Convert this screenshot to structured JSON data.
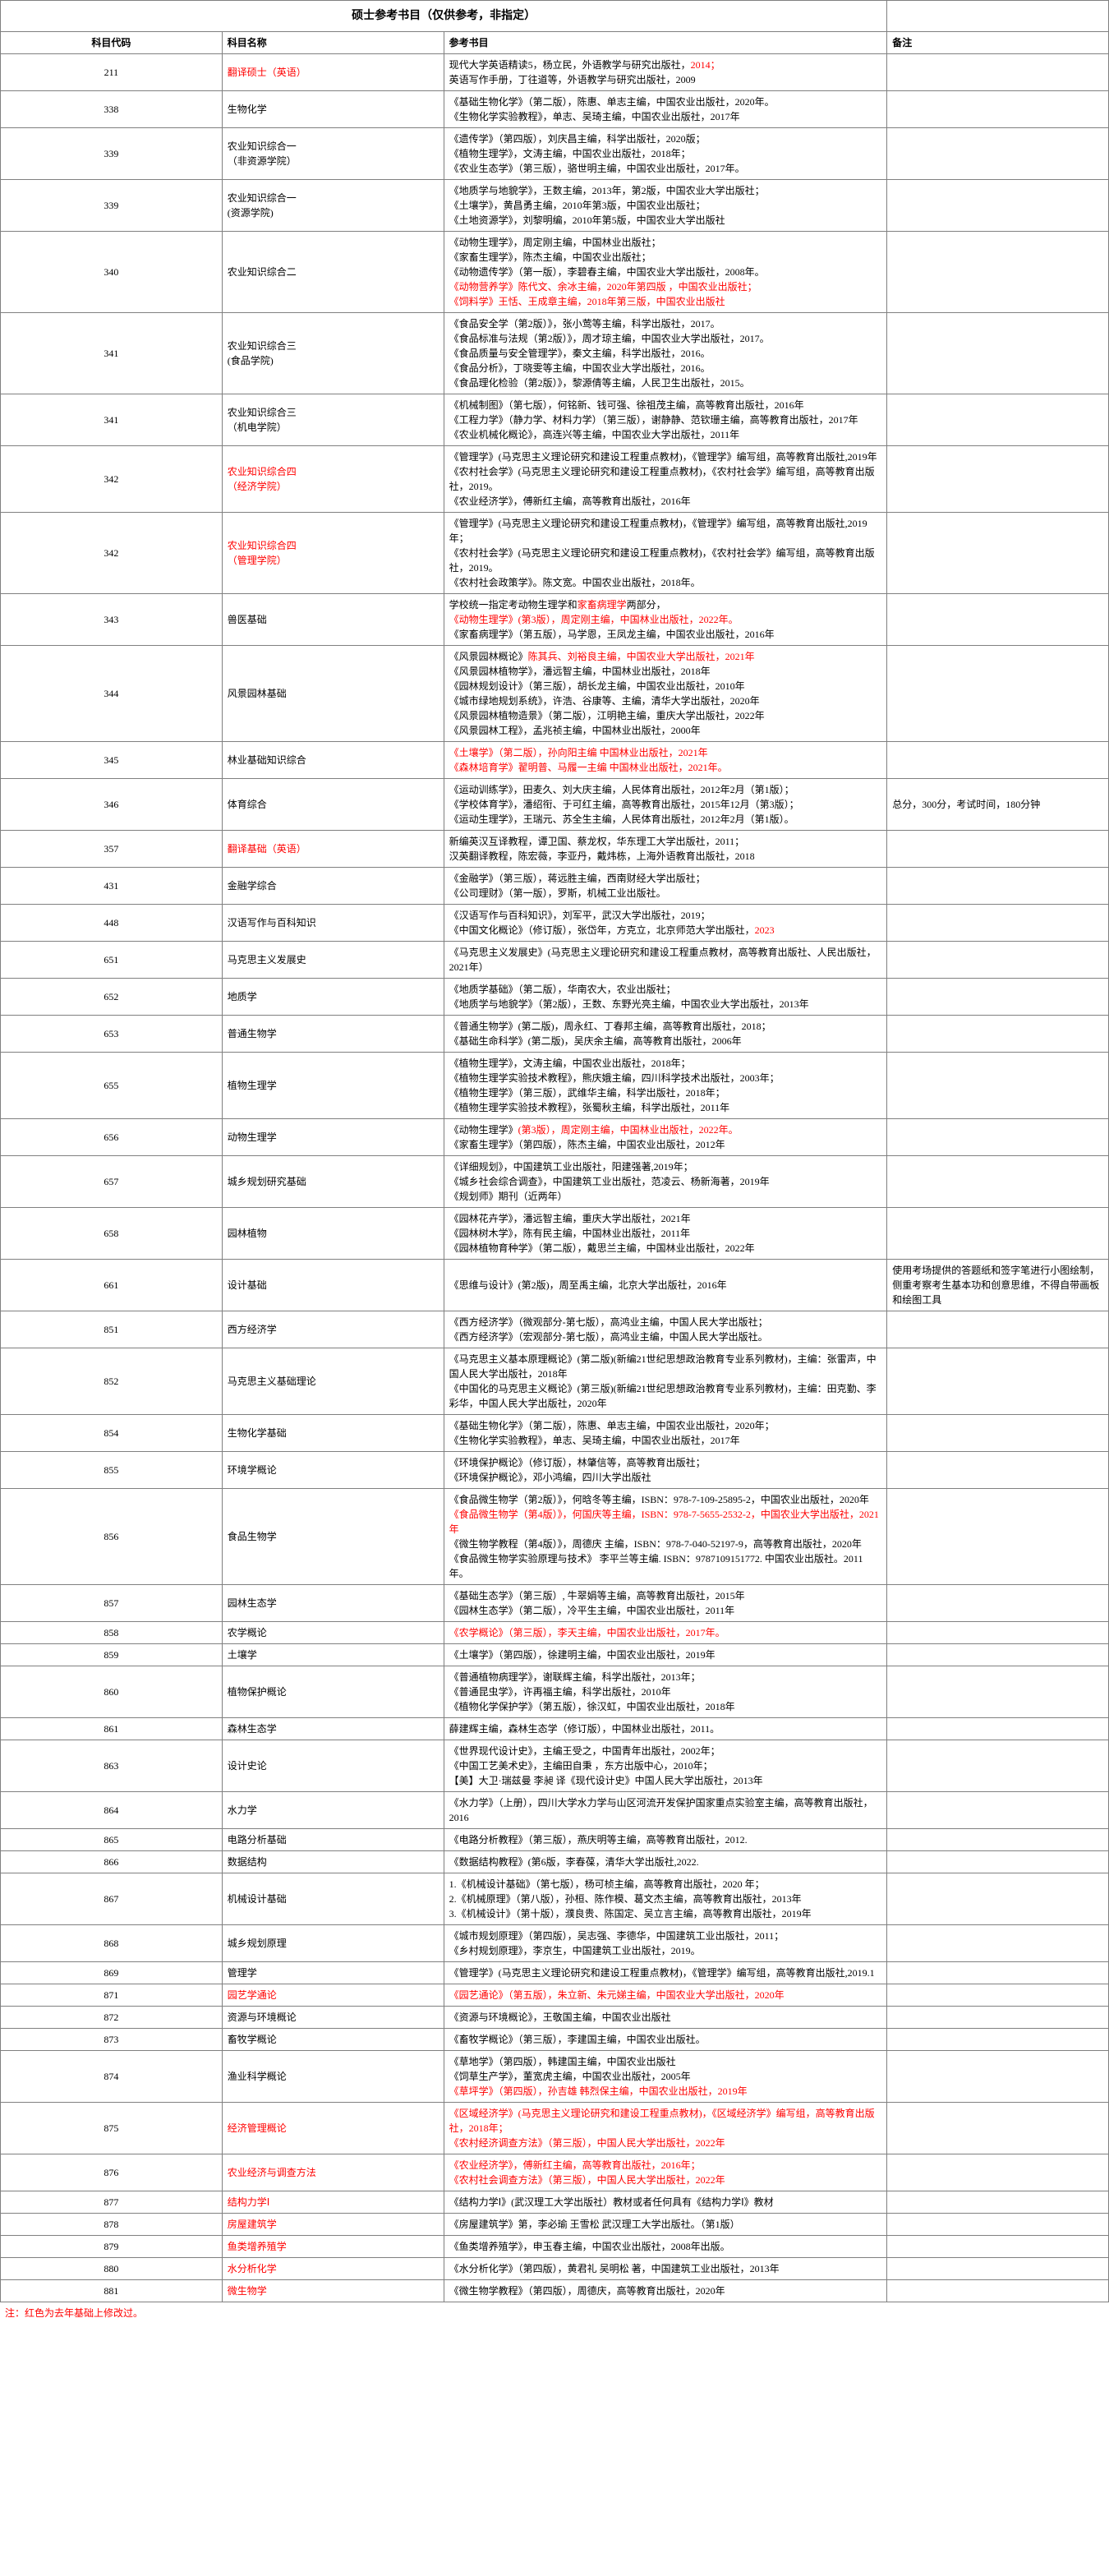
{
  "title": "硕士参考书目（仅供参考，非指定）",
  "headers": {
    "code": "科目代码",
    "name": "科目名称",
    "books": "参考书目",
    "remark": "备注"
  },
  "footnote": "注：红色为去年基础上修改过。",
  "rows": [
    {
      "code": "211",
      "name": [
        {
          "t": "翻译硕士（英语）",
          "red": true
        }
      ],
      "books": [
        {
          "t": "现代大学英语精读5，杨立民，外语教学与研究出版社，"
        },
        {
          "t": "2014；",
          "red": true
        },
        {
          "t": "\n英语写作手册，丁往道等，外语教学与研究出版社，2009"
        }
      ],
      "remark": ""
    },
    {
      "code": "338",
      "name": [
        {
          "t": "生物化学"
        }
      ],
      "books": [
        {
          "t": "《基础生物化学》（第二版），陈惠、单志主编，中国农业出版社，2020年。\n《生物化学实验教程》，单志、吴琦主编，中国农业出版社，2017年"
        }
      ],
      "remark": ""
    },
    {
      "code": "339",
      "name": [
        {
          "t": "农业知识综合一\n（非资源学院）"
        }
      ],
      "books": [
        {
          "t": "《遗传学》（第四版），刘庆昌主编，科学出版社，2020版；\n《植物生理学》，文涛主编，中国农业出版社，2018年；\n《农业生态学》（第三版），骆世明主编，中国农业出版社，2017年。"
        }
      ],
      "remark": ""
    },
    {
      "code": "339",
      "name": [
        {
          "t": "农业知识综合一\n(资源学院)"
        }
      ],
      "books": [
        {
          "t": "《地质学与地貌学》，王数主编，2013年，第2版，中国农业大学出版社；\n《土壤学》，黄昌勇主编，2010年第3版，中国农业出版社；\n《土地资源学》，刘黎明编，2010年第5版，中国农业大学出版社"
        }
      ],
      "remark": ""
    },
    {
      "code": "340",
      "name": [
        {
          "t": "农业知识综合二"
        }
      ],
      "books": [
        {
          "t": "《动物生理学》，周定刚主编，中国林业出版社；\n《家畜生理学》，陈杰主编，中国农业出版社；\n《动物遗传学》（第一版），李碧春主编，中国农业大学出版社，2008年。\n"
        },
        {
          "t": "《动物营养学》陈代文、余冰主编，2020年第四版 ，中国农业出版社；\n《饲料学》王恬、王成章主编，2018年第三版，中国农业出版社",
          "red": true
        }
      ],
      "remark": ""
    },
    {
      "code": "341",
      "name": [
        {
          "t": "农业知识综合三\n(食品学院)"
        }
      ],
      "books": [
        {
          "t": "《食品安全学（第2版）》，张小莺等主编，科学出版社，2017。\n《食品标准与法规（第2版）》，周才琼主编，中国农业大学出版社，2017。\n《食品质量与安全管理学》，秦文主编，科学出版社，2016。\n《食品分析》，丁晓雯等主编，中国农业大学出版社，2016。\n《食品理化检验（第2版）》，黎源倩等主编，人民卫生出版社，2015。"
        }
      ],
      "remark": ""
    },
    {
      "code": "341",
      "name": [
        {
          "t": "农业知识综合三\n（机电学院）"
        }
      ],
      "books": [
        {
          "t": "《机械制图》（第七版），何铭新、钱可强、徐祖茂主编，高等教育出版社，2016年\n《工程力学》（静力学、材料力学）（第三版），谢静静、范钦珊主编，高等教育出版社，2017年\n《农业机械化概论》，高连兴等主编，中国农业大学出版社，2011年"
        }
      ],
      "remark": ""
    },
    {
      "code": "342",
      "name": [
        {
          "t": "农业知识综合四\n（经济学院）",
          "red": true
        }
      ],
      "books": [
        {
          "t": "《管理学》(马克思主义理论研究和建设工程重点教材)，《管理学》编写组，高等教育出版社,2019年\n《农村社会学》(马克思主义理论研究和建设工程重点教材)，《农村社会学》编写组，高等教育出版社，2019。\n《农业经济学》，傅新红主编，高等教育出版社，2016年"
        }
      ],
      "remark": ""
    },
    {
      "code": "342",
      "name": [
        {
          "t": "农业知识综合四\n（管理学院）",
          "red": true
        }
      ],
      "books": [
        {
          "t": "《管理学》(马克思主义理论研究和建设工程重点教材)，《管理学》编写组，高等教育出版社,2019年；\n《农村社会学》(马克思主义理论研究和建设工程重点教材)，《农村社会学》编写组，高等教育出版社，2019。\n《农村社会政策学》。陈文宽。中国农业出版社，2018年。"
        }
      ],
      "remark": ""
    },
    {
      "code": "343",
      "name": [
        {
          "t": "兽医基础"
        }
      ],
      "books": [
        {
          "t": "学校统一指定考动物生理学和"
        },
        {
          "t": "家畜病理学",
          "red": true
        },
        {
          "t": "两部分，\n"
        },
        {
          "t": "《动物生理学》(第3版），周定刚主编，中国林业出版社，2022年。",
          "red": true
        },
        {
          "t": "\n《家畜病理学》（第五版），马学恩，王凤龙主编，中国农业出版社，2016年"
        }
      ],
      "remark": ""
    },
    {
      "code": "344",
      "name": [
        {
          "t": "风景园林基础"
        }
      ],
      "books": [
        {
          "t": "《风景园林概论》"
        },
        {
          "t": "陈其兵、刘裕良主编，中国农业大学出版社，2021年",
          "red": true
        },
        {
          "t": "\n《风景园林植物学》，潘远智主编，中国林业出版社，2018年\n《园林规划设计》（第三版），胡长龙主编，中国农业出版社，2010年\n《城市绿地规划系统》，许浩、谷康等、主编，清华大学出版社，2020年\n《风景园林植物造景》（第二版），江明艳主编，重庆大学出版社，2022年\n《风景园林工程》，孟兆祯主编，中国林业出版社，2000年"
        }
      ],
      "remark": ""
    },
    {
      "code": "345",
      "name": [
        {
          "t": "林业基础知识综合"
        }
      ],
      "books": [
        {
          "t": "《土壤学》（第二版），孙向阳主编 中国林业出版社，2021年\n《森林培育学》翟明普、马履一主编 中国林业出版社，2021年。",
          "red": true
        }
      ],
      "remark": ""
    },
    {
      "code": "346",
      "name": [
        {
          "t": "体育综合"
        }
      ],
      "books": [
        {
          "t": "《运动训练学》，田麦久、刘大庆主编，人民体育出版社，2012年2月（第1版）；\n《学校体育学》，潘绍衔、于可红主编，高等教育出版社，2015年12月（第3版）；\n《运动生理学》，王瑞元、苏全生主编，人民体育出版社，2012年2月（第1版）。"
        }
      ],
      "remark": "总分，300分，考试时间，180分钟"
    },
    {
      "code": "357",
      "name": [
        {
          "t": "翻译基础（英语）",
          "red": true
        }
      ],
      "books": [
        {
          "t": "新编英汉互译教程，谭卫国、蔡龙权，华东理工大学出版社，2011；\n汉英翻译教程，陈宏薇，李亚丹，戴炜栋，上海外语教育出版社，2018"
        }
      ],
      "remark": ""
    },
    {
      "code": "431",
      "name": [
        {
          "t": "金融学综合"
        }
      ],
      "books": [
        {
          "t": "《金融学》（第三版），蒋远胜主编，西南财经大学出版社；\n《公司理财》（第一版），罗斯，机械工业出版社。"
        }
      ],
      "remark": ""
    },
    {
      "code": "448",
      "name": [
        {
          "t": "汉语写作与百科知识"
        }
      ],
      "books": [
        {
          "t": "《汉语写作与百科知识》，刘军平，武汉大学出版社，2019；\n《中国文化概论》（修订版），张岱年，方克立，北京师范大学出版社，"
        },
        {
          "t": "2023",
          "red": true
        }
      ],
      "remark": ""
    },
    {
      "code": "651",
      "name": [
        {
          "t": "马克思主义发展史"
        }
      ],
      "books": [
        {
          "t": "《马克思主义发展史》(马克思主义理论研究和建设工程重点教材，高等教育出版社、人民出版社，2021年）"
        }
      ],
      "remark": ""
    },
    {
      "code": "652",
      "name": [
        {
          "t": "地质学"
        }
      ],
      "books": [
        {
          "t": "《地质学基础》（第二版），华南农大，农业出版社；\n《地质学与地貌学》（第2版），王数、东野光亮主编，中国农业大学出版社，2013年"
        }
      ],
      "remark": ""
    },
    {
      "code": "653",
      "name": [
        {
          "t": "普通生物学"
        }
      ],
      "books": [
        {
          "t": "《普通生物学》(第二版)，周永红、丁春邦主编，高等教育出版社，2018；\n《基础生命科学》(第二版)，吴庆余主编，高等教育出版社，2006年"
        }
      ],
      "remark": ""
    },
    {
      "code": "655",
      "name": [
        {
          "t": "植物生理学"
        }
      ],
      "books": [
        {
          "t": "《植物生理学》，文涛主编，中国农业出版社，2018年；\n《植物生理学实验技术教程》，熊庆娥主编，四川科学技术出版社，2003年；\n《植物生理学》（第三版），武维华主编，科学出版社，2018年；\n《植物生理学实验技术教程》，张蜀秋主编，科学出版社，2011年"
        }
      ],
      "remark": ""
    },
    {
      "code": "656",
      "name": [
        {
          "t": "动物生理学"
        }
      ],
      "books": [
        {
          "t": "《动物生理学》"
        },
        {
          "t": "(第3版），周定刚主编，中国林业出版社，2022年。",
          "red": true
        },
        {
          "t": "\n《家畜生理学》（第四版），陈杰主编，中国农业出版社，2012年"
        }
      ],
      "remark": ""
    },
    {
      "code": "657",
      "name": [
        {
          "t": "城乡规划研究基础"
        }
      ],
      "books": [
        {
          "t": "《详细规划》，中国建筑工业出版社，阳建强著,2019年；\n《城乡社会综合调查》，中国建筑工业出版社，范凌云、杨新海著，2019年\n《规划师》期刊（近两年）"
        }
      ],
      "remark": ""
    },
    {
      "code": "658",
      "name": [
        {
          "t": "园林植物"
        }
      ],
      "books": [
        {
          "t": "《园林花卉学》，潘远智主编，重庆大学出版社，2021年\n《园林树木学》，陈有民主编，中国林业出版社，2011年\n《园林植物育种学》（第二版），戴思兰主编，中国林业出版社，2022年"
        }
      ],
      "remark": ""
    },
    {
      "code": "661",
      "name": [
        {
          "t": "设计基础"
        }
      ],
      "books": [
        {
          "t": "《思维与设计》(第2版)，周至禹主编，北京大学出版社，2016年"
        }
      ],
      "remark": "使用考场提供的答题纸和签字笔进行小图绘制，侧重考察考生基本功和创意思维，不得自带画板和绘图工具"
    },
    {
      "code": "851",
      "name": [
        {
          "t": "西方经济学"
        }
      ],
      "books": [
        {
          "t": "《西方经济学》（微观部分-第七版），高鸿业主编，中国人民大学出版社；\n《西方经济学》（宏观部分-第七版），高鸿业主编，中国人民大学出版社。"
        }
      ],
      "remark": ""
    },
    {
      "code": "852",
      "name": [
        {
          "t": "马克思主义基础理论"
        }
      ],
      "books": [
        {
          "t": "《马克思主义基本原理概论》(第二版)(新编21世纪思想政治教育专业系列教材)，主编：张雷声，中国人民大学出版社，2018年\n《中国化的马克思主义概论》(第三版)(新编21世纪思想政治教育专业系列教材)，主编：田克勤、李彩华，中国人民大学出版社，2020年"
        }
      ],
      "remark": ""
    },
    {
      "code": "854",
      "name": [
        {
          "t": "生物化学基础"
        }
      ],
      "books": [
        {
          "t": "《基础生物化学》（第二版），陈惠、单志主编，中国农业出版社，2020年；\n《生物化学实验教程》，单志、吴琦主编，中国农业出版社，2017年"
        }
      ],
      "remark": ""
    },
    {
      "code": "855",
      "name": [
        {
          "t": "环境学概论"
        }
      ],
      "books": [
        {
          "t": "《环境保护概论》（修订版），林肇信等，高等教育出版社；\n《环境保护概论》，邓小鸿编，四川大学出版社"
        }
      ],
      "remark": ""
    },
    {
      "code": "856",
      "name": [
        {
          "t": "食品生物学"
        }
      ],
      "books": [
        {
          "t": "《食品微生物学（第2版）》，何晗冬等主编，ISBN：978-7-109-25895-2，中国农业出版社，2020年\n"
        },
        {
          "t": "《食品微生物学（第4版）》，何国庆等主编，ISBN：978-7-5655-2532-2，中国农业大学出版社，2021年",
          "red": true
        },
        {
          "t": "\n《微生物学教程（第4版）》，周德庆 主编，ISBN：978-7-040-52197-9，高等教育出版社，2020年\n《食品微生物学实验原理与技术》 李平兰等主编. ISBN：9787109151772. 中国农业出版社。2011年。"
        }
      ],
      "remark": ""
    },
    {
      "code": "857",
      "name": [
        {
          "t": "园林生态学"
        }
      ],
      "books": [
        {
          "t": "《基础生态学》（第三版）, 牛翠娟等主编，高等教育出版社，2015年\n《园林生态学》（第二版），冷平生主编，中国农业出版社，2011年"
        }
      ],
      "remark": ""
    },
    {
      "code": "858",
      "name": [
        {
          "t": "农学概论"
        }
      ],
      "books": [
        {
          "t": "《农学概论》（第三版），李天主编，中国农业出版社，2017年。",
          "red": true
        }
      ],
      "remark": ""
    },
    {
      "code": "859",
      "name": [
        {
          "t": "土壤学"
        }
      ],
      "books": [
        {
          "t": "《土壤学》（第四版），徐建明主编，中国农业出版社，2019年"
        }
      ],
      "remark": ""
    },
    {
      "code": "860",
      "name": [
        {
          "t": "植物保护概论"
        }
      ],
      "books": [
        {
          "t": "《普通植物病理学》，谢联辉主编，科学出版社，2013年；\n《普通昆虫学》，许再福主编，科学出版社，2010年\n《植物化学保护学》（第五版），徐汉虹，中国农业出版社，2018年"
        }
      ],
      "remark": ""
    },
    {
      "code": "861",
      "name": [
        {
          "t": "森林生态学"
        }
      ],
      "books": [
        {
          "t": "薛建辉主编，森林生态学（修订版），中国林业出版社，2011。"
        }
      ],
      "remark": ""
    },
    {
      "code": "863",
      "name": [
        {
          "t": "设计史论"
        }
      ],
      "books": [
        {
          "t": "《世界现代设计史》，主编王受之，中国青年出版社，2002年；\n《中国工艺美术史》，主编田自秉 ，东方出版中心，2010年；\n【美】大卫·瑞兹曼 李昶 译《现代设计史》中国人民大学出版社，2013年"
        }
      ],
      "remark": ""
    },
    {
      "code": "864",
      "name": [
        {
          "t": "水力学"
        }
      ],
      "books": [
        {
          "t": "《水力学》（上册），四川大学水力学与山区河流开发保护国家重点实验室主编，高等教育出版社，2016"
        }
      ],
      "remark": ""
    },
    {
      "code": "865",
      "name": [
        {
          "t": "电路分析基础"
        }
      ],
      "books": [
        {
          "t": "《电路分析教程》（第三版），燕庆明等主编，高等教育出版社，2012."
        }
      ],
      "remark": ""
    },
    {
      "code": "866",
      "name": [
        {
          "t": "数据结构"
        }
      ],
      "books": [
        {
          "t": "《数据结构教程》(第6版，李春葆，清华大学出版社,2022."
        }
      ],
      "remark": ""
    },
    {
      "code": "867",
      "name": [
        {
          "t": "机械设计基础"
        }
      ],
      "books": [
        {
          "t": "1.《机械设计基础》（第七版），杨可桢主编，高等教育出版社，2020 年；\n2.《机械原理》（第八版），孙桓、陈作模、葛文杰主编，高等教育出版社，2013年\n3.《机械设计》（第十版），濮良贵、陈国定、吴立言主编，高等教育出版社，2019年"
        }
      ],
      "remark": ""
    },
    {
      "code": "868",
      "name": [
        {
          "t": "城乡规划原理"
        }
      ],
      "books": [
        {
          "t": "《城市规划原理》（第四版），吴志强、李德华，中国建筑工业出版社，2011；\n《乡村规划原理》，李京生，中国建筑工业出版社，2019。"
        }
      ],
      "remark": ""
    },
    {
      "code": "869",
      "name": [
        {
          "t": "管理学"
        }
      ],
      "books": [
        {
          "t": "《管理学》(马克思主义理论研究和建设工程重点教材)，《管理学》编写组，高等教育出版社,2019.1"
        }
      ],
      "remark": ""
    },
    {
      "code": "871",
      "name": [
        {
          "t": "园艺学通论",
          "red": true
        }
      ],
      "books": [
        {
          "t": "《园艺通论》（第五版），朱立新、朱元娣主编，中国农业大学出版社，2020年",
          "red": true
        }
      ],
      "remark": ""
    },
    {
      "code": "872",
      "name": [
        {
          "t": "资源与环境概论"
        }
      ],
      "books": [
        {
          "t": "《资源与环境概论》，王敬国主编，中国农业出版社"
        }
      ],
      "remark": ""
    },
    {
      "code": "873",
      "name": [
        {
          "t": "畜牧学概论"
        }
      ],
      "books": [
        {
          "t": "《畜牧学概论》（第三版），李建国主编，中国农业出版社。"
        }
      ],
      "remark": ""
    },
    {
      "code": "874",
      "name": [
        {
          "t": "渔业科学概论"
        }
      ],
      "books": [
        {
          "t": "《草地学》（第四版），韩建国主编，中国农业出版社\n《饲草生产学》，董宽虎主编，中国农业出版社，2005年\n"
        },
        {
          "t": "《草坪学》（第四版），孙吉雄 韩烈保主编，中国农业出版社，2019年",
          "red": true
        }
      ],
      "remark": ""
    },
    {
      "code": "875",
      "name": [
        {
          "t": "经济管理概论",
          "red": true
        }
      ],
      "books": [
        {
          "t": "《区域经济学》(马克思主义理论研究和建设工程重点教材)，《区域经济学》编写组，高等教育出版社，2018年；\n《农村经济调查方法》（第三版），中国人民大学出版社，2022年",
          "red": true
        }
      ],
      "remark": ""
    },
    {
      "code": "876",
      "name": [
        {
          "t": "农业经济与调查方法",
          "red": true
        }
      ],
      "books": [
        {
          "t": "《农业经济学》，傅新红主编，高等教育出版社，2016年；\n《农村社会调查方法》（第三版），中国人民大学出版社，2022年",
          "red": true
        }
      ],
      "remark": ""
    },
    {
      "code": "877",
      "name": [
        {
          "t": "结构力学Ⅰ",
          "red": true
        }
      ],
      "books": [
        {
          "t": "《结构力学Ⅰ》(武汉理工大学出版社）教材或者任何具有《结构力学Ⅰ》教材"
        }
      ],
      "remark": ""
    },
    {
      "code": "878",
      "name": [
        {
          "t": "房屋建筑学",
          "red": true
        }
      ],
      "books": [
        {
          "t": "《房屋建筑学》第，李必瑜 王雪松 武汉理工大学出版社。（第1版）"
        }
      ],
      "remark": ""
    },
    {
      "code": "879",
      "name": [
        {
          "t": "鱼类增养殖学",
          "red": true
        }
      ],
      "books": [
        {
          "t": "《鱼类增养殖学》，申玉春主编，中国农业出版社，2008年出版。"
        }
      ],
      "remark": ""
    },
    {
      "code": "880",
      "name": [
        {
          "t": "水分析化学",
          "red": true
        }
      ],
      "books": [
        {
          "t": "《水分析化学》（第四版），黄君礼 吴明松 著，中国建筑工业出版社，2013年"
        }
      ],
      "remark": ""
    },
    {
      "code": "881",
      "name": [
        {
          "t": "微生物学",
          "red": true
        }
      ],
      "books": [
        {
          "t": "《微生物学教程》（第四版），周德庆，高等教育出版社，2020年"
        }
      ],
      "remark": ""
    }
  ]
}
